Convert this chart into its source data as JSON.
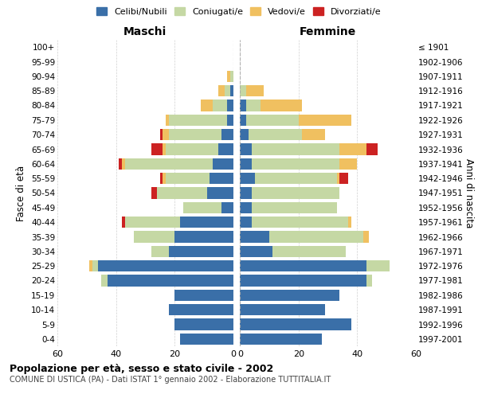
{
  "age_groups": [
    "0-4",
    "5-9",
    "10-14",
    "15-19",
    "20-24",
    "25-29",
    "30-34",
    "35-39",
    "40-44",
    "45-49",
    "50-54",
    "55-59",
    "60-64",
    "65-69",
    "70-74",
    "75-79",
    "80-84",
    "85-89",
    "90-94",
    "95-99",
    "100+"
  ],
  "birth_years": [
    "1997-2001",
    "1992-1996",
    "1987-1991",
    "1982-1986",
    "1977-1981",
    "1972-1976",
    "1967-1971",
    "1962-1966",
    "1957-1961",
    "1952-1956",
    "1947-1951",
    "1942-1946",
    "1937-1941",
    "1932-1936",
    "1927-1931",
    "1922-1926",
    "1917-1921",
    "1912-1916",
    "1907-1911",
    "1902-1906",
    "≤ 1901"
  ],
  "maschi": {
    "celibi": [
      18,
      20,
      22,
      20,
      43,
      46,
      22,
      20,
      18,
      4,
      9,
      8,
      7,
      5,
      4,
      2,
      2,
      1,
      0,
      0,
      0
    ],
    "coniugati": [
      0,
      0,
      0,
      0,
      2,
      2,
      6,
      14,
      19,
      13,
      17,
      15,
      30,
      18,
      18,
      20,
      5,
      2,
      1,
      0,
      0
    ],
    "vedovi": [
      0,
      0,
      0,
      0,
      0,
      1,
      0,
      0,
      0,
      0,
      0,
      1,
      1,
      1,
      2,
      1,
      4,
      2,
      1,
      0,
      0
    ],
    "divorziati": [
      0,
      0,
      0,
      0,
      0,
      0,
      0,
      0,
      1,
      0,
      2,
      1,
      1,
      4,
      1,
      0,
      0,
      0,
      0,
      0,
      0
    ]
  },
  "femmine": {
    "nubili": [
      28,
      38,
      29,
      34,
      43,
      43,
      11,
      10,
      4,
      4,
      4,
      5,
      4,
      4,
      3,
      2,
      2,
      0,
      0,
      0,
      0
    ],
    "coniugate": [
      0,
      0,
      0,
      0,
      2,
      8,
      25,
      32,
      33,
      29,
      30,
      28,
      30,
      30,
      18,
      18,
      5,
      2,
      0,
      0,
      0
    ],
    "vedove": [
      0,
      0,
      0,
      0,
      0,
      0,
      0,
      2,
      1,
      0,
      0,
      1,
      6,
      9,
      8,
      18,
      14,
      6,
      0,
      0,
      0
    ],
    "divorziate": [
      0,
      0,
      0,
      0,
      0,
      0,
      0,
      0,
      0,
      0,
      0,
      3,
      0,
      4,
      0,
      0,
      0,
      0,
      0,
      0,
      0
    ]
  },
  "colors": {
    "celibi": "#3a6fa8",
    "coniugati": "#c5d8a4",
    "vedovi": "#f0c060",
    "divorziati": "#cc2222"
  },
  "xlim": 60,
  "title": "Popolazione per età, sesso e stato civile - 2002",
  "subtitle": "COMUNE DI USTICA (PA) - Dati ISTAT 1° gennaio 2002 - Elaborazione TUTTITALIA.IT",
  "ylabel_left": "Fasce di età",
  "ylabel_right": "Anni di nascita",
  "xlabel_maschi": "Maschi",
  "xlabel_femmine": "Femmine",
  "legend_labels": [
    "Celibi/Nubili",
    "Coniugati/e",
    "Vedovi/e",
    "Divorziati/e"
  ],
  "background_color": "#ffffff",
  "grid_color": "#cccccc"
}
